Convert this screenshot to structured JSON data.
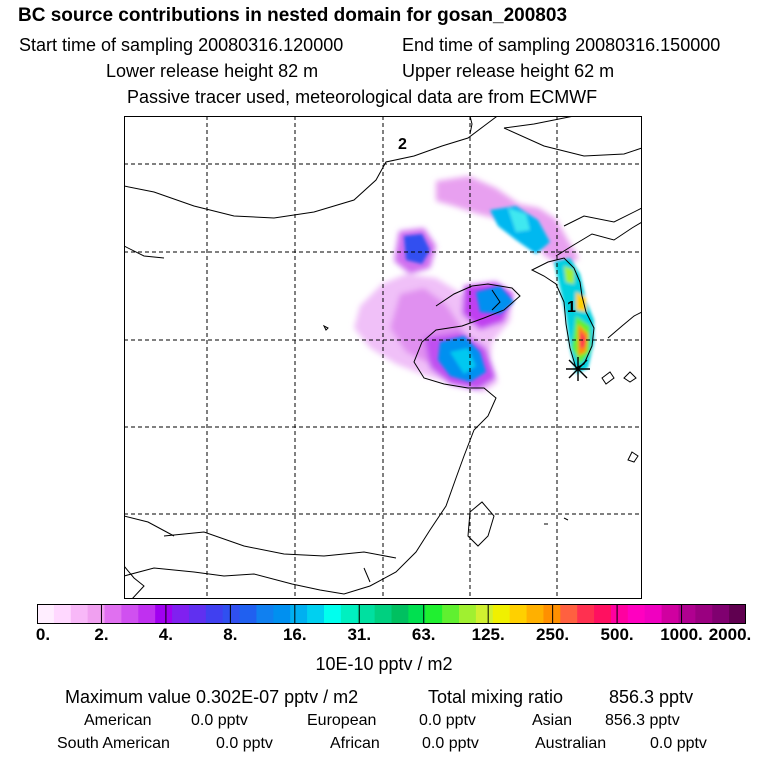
{
  "header": {
    "title": "BC  source contributions in nested domain for gosan_200803",
    "start_label": "Start time of sampling 20080316.120000",
    "end_label": "End time of sampling 20080316.150000",
    "lower_label": "Lower release height   82 m",
    "upper_label": "Upper release height   62 m",
    "tracer_note": "Passive tracer used, meteorological data are from ECMWF"
  },
  "map": {
    "labels": {
      "release_1": "1",
      "release_2": "2"
    },
    "receptor_symbol": "asterisk"
  },
  "colorbar": {
    "tick_labels": [
      "0.",
      "2.",
      "4.",
      "8.",
      "16.",
      "31.",
      "63.",
      "125.",
      "250.",
      "500.",
      "1000.",
      "2000."
    ],
    "colors": [
      "#ffeeff",
      "#ffd8ff",
      "#f8b8f8",
      "#f0a0f0",
      "#e070f0",
      "#d050f0",
      "#c030f0",
      "#a000f0",
      "#8020f0",
      "#6030f0",
      "#4040f0",
      "#3050f0",
      "#2060f0",
      "#1080f0",
      "#0090f0",
      "#00b0f0",
      "#00d0f0",
      "#00ffee",
      "#00f0c0",
      "#00e0a0",
      "#00d080",
      "#00c060",
      "#00e050",
      "#20f030",
      "#60f030",
      "#a0f030",
      "#d0f030",
      "#f0f000",
      "#ffd000",
      "#ffb000",
      "#ff9000",
      "#ff6040",
      "#ff3050",
      "#ff1060",
      "#ff00a0",
      "#ff00c0",
      "#f000c0",
      "#d000a0",
      "#b00090",
      "#9a0080",
      "#800070",
      "#600050"
    ],
    "units": "10E-10 pptv / m2"
  },
  "summary": {
    "max_label": "Maximum value  0.302E-07 pptv / m2",
    "total_label": "Total mixing ratio",
    "total_value": "856.3 pptv",
    "regions": [
      {
        "name": "American",
        "value": "0.0 pptv"
      },
      {
        "name": "European",
        "value": "0.0 pptv"
      },
      {
        "name": "Asian",
        "value": "856.3 pptv"
      },
      {
        "name": "South American",
        "value": "0.0 pptv"
      },
      {
        "name": "African",
        "value": "0.0 pptv"
      },
      {
        "name": "Australian",
        "value": "0.0 pptv"
      }
    ]
  }
}
